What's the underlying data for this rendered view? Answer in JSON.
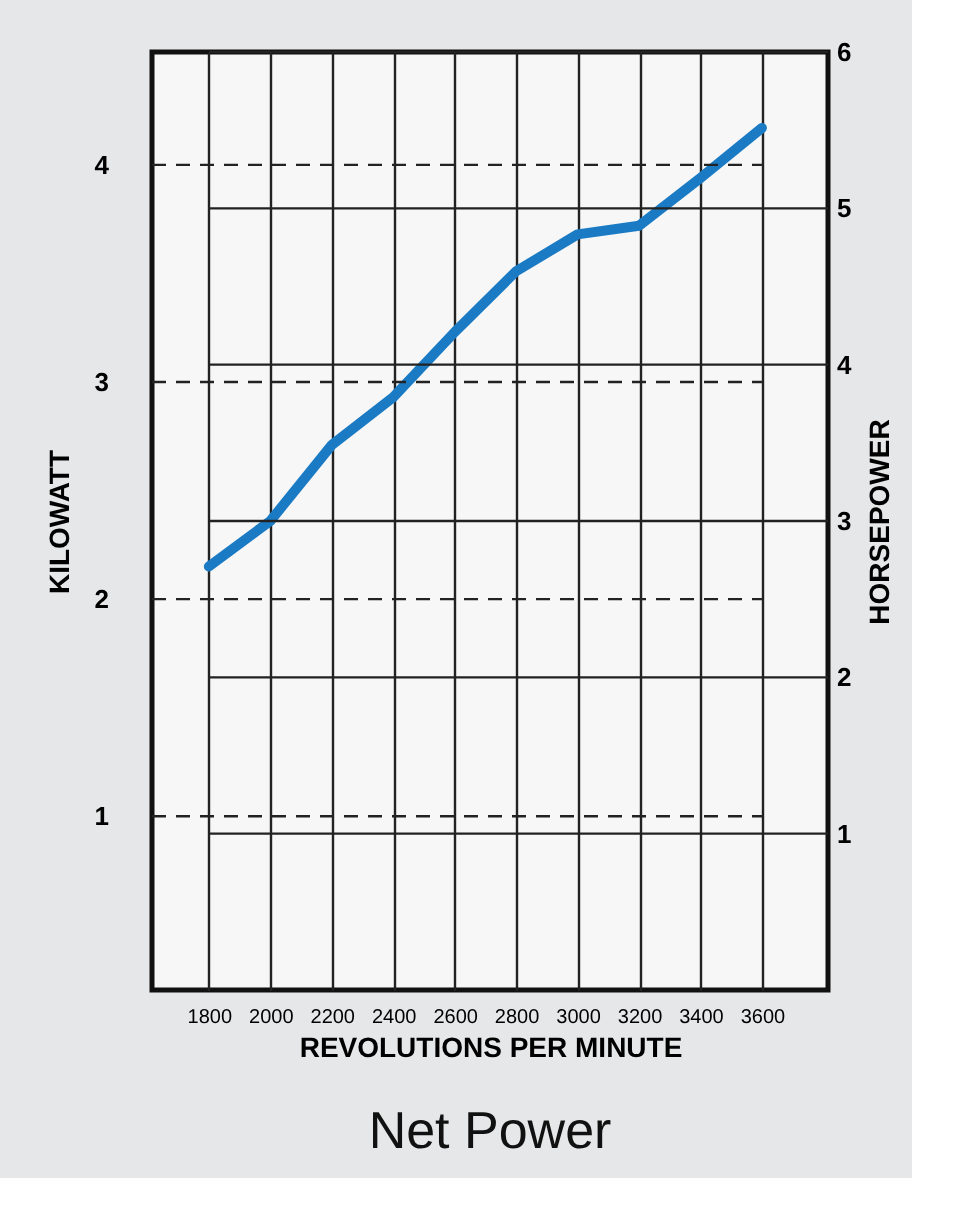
{
  "chart_data": {
    "type": "line",
    "title": "Net Power",
    "xlabel": "REVOLUTIONS PER MINUTE",
    "ylabel": "KILOWATT",
    "y2label": "HORSEPOWER",
    "x": [
      1800,
      2000,
      2200,
      2400,
      2600,
      2800,
      3000,
      3200,
      3400,
      3600
    ],
    "series": [
      {
        "color": "#1a7bc4",
        "values": [
          2.15,
          2.36,
          2.71,
          2.93,
          3.23,
          3.51,
          3.68,
          3.72,
          3.94,
          4.17
        ]
      }
    ],
    "xlim": [
      1615,
      3815
    ],
    "xticks": [
      1800,
      2000,
      2200,
      2400,
      2600,
      2800,
      3000,
      3200,
      3400,
      3600
    ],
    "ylim": [
      0.2,
      4.52
    ],
    "yticks": [
      1,
      2,
      3,
      4
    ],
    "y2lim": [
      0,
      6
    ],
    "y2ticks": [
      1,
      2,
      3,
      4,
      5,
      6
    ],
    "grid": true,
    "marker": "none",
    "line_style": "solid"
  }
}
